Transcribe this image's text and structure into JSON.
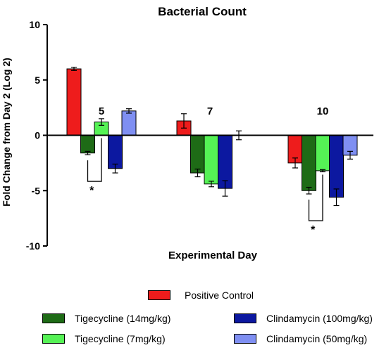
{
  "chart_data": {
    "type": "bar",
    "title": "Bacterial Count",
    "xlabel": "Experimental Day",
    "ylabel": "Fold Change from Day 2 (Log 2)",
    "ylim": [
      -10,
      10
    ],
    "yticks": [
      -10,
      -5,
      0,
      5,
      10
    ],
    "categories": [
      "5",
      "7",
      "10"
    ],
    "series": [
      {
        "name": "Positive Control",
        "color": "#ee1c1c",
        "values": [
          6.0,
          1.3,
          -2.5
        ],
        "errors": [
          0.15,
          0.65,
          0.45
        ]
      },
      {
        "name": "Tigecycline (14mg/kg)",
        "color": "#1e6b16",
        "values": [
          -1.6,
          -3.4,
          -5.0
        ],
        "errors": [
          0.15,
          0.35,
          0.3
        ]
      },
      {
        "name": "Tigecycline (7mg/kg)",
        "color": "#55f255",
        "values": [
          1.2,
          -4.4,
          -3.2
        ],
        "errors": [
          0.3,
          0.25,
          0.1
        ]
      },
      {
        "name": "Clindamycin (100mg/kg)",
        "color": "#0c18a0",
        "values": [
          -3.0,
          -4.8,
          -5.6
        ],
        "errors": [
          0.4,
          0.7,
          0.75
        ]
      },
      {
        "name": "Clindamycin (50mg/kg)",
        "color": "#7f8ff2",
        "values": [
          2.2,
          0.0,
          -1.8
        ],
        "errors": [
          0.2,
          0.4,
          0.35
        ]
      }
    ],
    "significance": [
      {
        "category": "5",
        "between": [
          "Tigecycline (14mg/kg)",
          "Tigecycline (7mg/kg)"
        ],
        "label": "*"
      },
      {
        "category": "10",
        "between": [
          "Tigecycline (14mg/kg)",
          "Tigecycline (7mg/kg)"
        ],
        "label": "*"
      }
    ],
    "grid": false,
    "legend": "bottom"
  }
}
